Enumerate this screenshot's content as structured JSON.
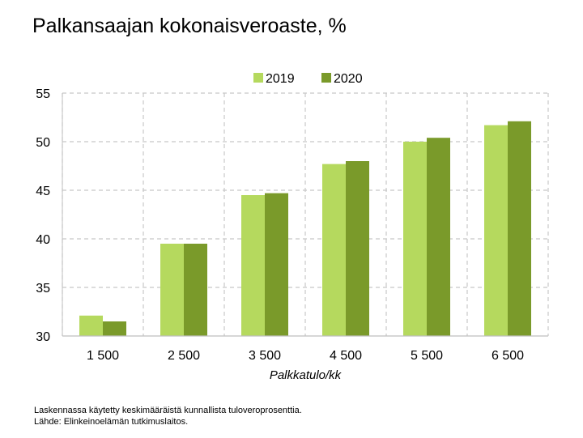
{
  "chart_data": {
    "type": "bar",
    "title": "Palkansaajan kokonaisveroaste, %",
    "xlabel": "Palkkatulo/kk",
    "ylabel": "",
    "categories": [
      "1 500",
      "2 500",
      "3 500",
      "4 500",
      "5 500",
      "6 500"
    ],
    "series": [
      {
        "name": "2019",
        "color": "#b5d95e",
        "values": [
          32.1,
          39.5,
          44.5,
          47.7,
          50.0,
          51.7
        ]
      },
      {
        "name": "2020",
        "color": "#7a9a2a",
        "values": [
          31.5,
          39.5,
          44.7,
          48.0,
          50.4,
          52.1
        ]
      }
    ],
    "ylim": [
      30,
      55
    ],
    "yticks": [
      30,
      35,
      40,
      45,
      50,
      55
    ],
    "grid": true,
    "legend_position": "top-center"
  },
  "notes": {
    "line1": "Laskennassa käytetty keskimääräistä kunnallista tuloveroprosenttia.",
    "line2": "Lähde: Elinkeinoelämän tutkimuslaitos."
  }
}
